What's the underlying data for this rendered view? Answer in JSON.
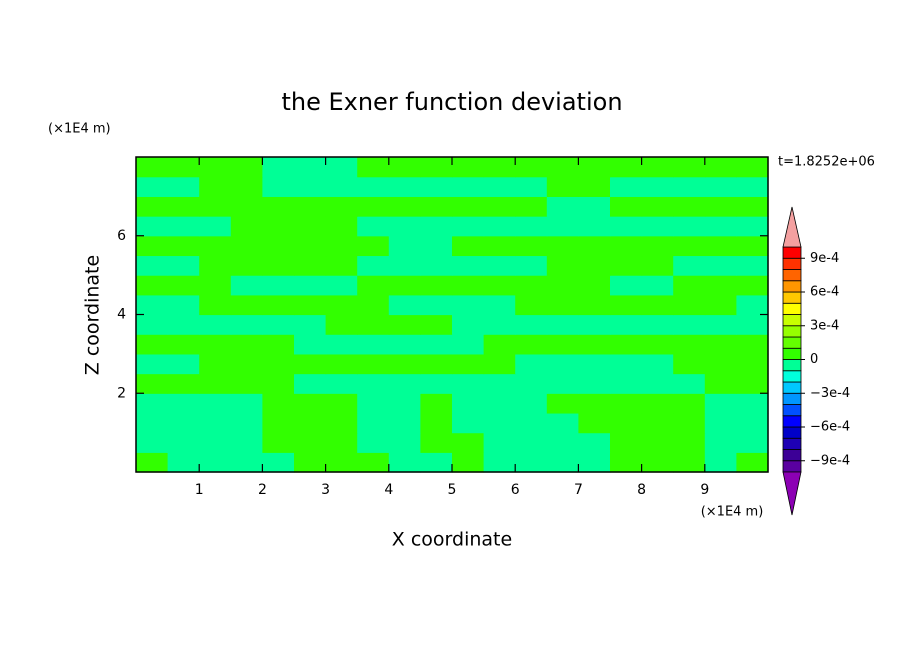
{
  "chart_data": {
    "type": "contour",
    "title": "the Exner function deviation",
    "x_label": "X coordinate",
    "y_label": "Z coordinate",
    "x_unit": "(×1E4 m)",
    "y_unit": "(×1E4 m)",
    "annotation": "t=1.8252e+06",
    "xlim": [
      0,
      10
    ],
    "ylim": [
      0,
      8
    ],
    "xticks": [
      1,
      2,
      3,
      4,
      5,
      6,
      7,
      8,
      9
    ],
    "yticks": [
      2,
      4,
      6
    ],
    "x": [
      0.25,
      0.75,
      1.25,
      1.75,
      2.25,
      2.75,
      3.25,
      3.75,
      4.25,
      4.75,
      5.25,
      5.75,
      6.25,
      6.75,
      7.25,
      7.75,
      8.25,
      8.75,
      9.25,
      9.75
    ],
    "y": [
      0.25,
      0.75,
      1.25,
      1.75,
      2.25,
      2.75,
      3.25,
      3.75,
      4.25,
      4.75,
      5.25,
      5.75,
      6.25,
      6.75,
      7.25,
      7.75
    ],
    "z": [
      [
        5e-05,
        -5e-05,
        -5e-05,
        -5e-05,
        -5e-05,
        5e-05,
        5e-05,
        5e-05,
        -5e-05,
        -5e-05,
        5e-05,
        -5e-05,
        -5e-05,
        -5e-05,
        -5e-05,
        5e-05,
        5e-05,
        5e-05,
        -5e-05,
        5e-05
      ],
      [
        -5e-05,
        -5e-05,
        -5e-05,
        -5e-05,
        5e-05,
        5e-05,
        5e-05,
        -5e-05,
        -5e-05,
        5e-05,
        5e-05,
        -5e-05,
        -5e-05,
        -5e-05,
        -5e-05,
        5e-05,
        5e-05,
        5e-05,
        -5e-05,
        -5e-05
      ],
      [
        -5e-05,
        -5e-05,
        -5e-05,
        -5e-05,
        5e-05,
        5e-05,
        5e-05,
        -5e-05,
        -5e-05,
        5e-05,
        -5e-05,
        -5e-05,
        -5e-05,
        -5e-05,
        5e-05,
        5e-05,
        5e-05,
        5e-05,
        -5e-05,
        -5e-05
      ],
      [
        -5e-05,
        -5e-05,
        -5e-05,
        -5e-05,
        5e-05,
        5e-05,
        5e-05,
        -5e-05,
        -5e-05,
        5e-05,
        -5e-05,
        -5e-05,
        -5e-05,
        5e-05,
        5e-05,
        5e-05,
        5e-05,
        5e-05,
        -5e-05,
        -5e-05
      ],
      [
        5e-05,
        5e-05,
        5e-05,
        5e-05,
        5e-05,
        -5e-05,
        -5e-05,
        -5e-05,
        -5e-05,
        -5e-05,
        -5e-05,
        -5e-05,
        -5e-05,
        -5e-05,
        -5e-05,
        -5e-05,
        -5e-05,
        -5e-05,
        5e-05,
        5e-05
      ],
      [
        -5e-05,
        -5e-05,
        5e-05,
        5e-05,
        5e-05,
        5e-05,
        5e-05,
        5e-05,
        5e-05,
        5e-05,
        5e-05,
        5e-05,
        -5e-05,
        -5e-05,
        -5e-05,
        -5e-05,
        -5e-05,
        5e-05,
        5e-05,
        5e-05
      ],
      [
        5e-05,
        5e-05,
        5e-05,
        5e-05,
        5e-05,
        -5e-05,
        -5e-05,
        -5e-05,
        -5e-05,
        -5e-05,
        -5e-05,
        5e-05,
        5e-05,
        5e-05,
        5e-05,
        5e-05,
        5e-05,
        5e-05,
        5e-05,
        5e-05
      ],
      [
        -5e-05,
        -5e-05,
        -5e-05,
        -5e-05,
        -5e-05,
        -5e-05,
        5e-05,
        5e-05,
        5e-05,
        5e-05,
        -5e-05,
        -5e-05,
        -5e-05,
        -5e-05,
        -5e-05,
        -5e-05,
        -5e-05,
        -5e-05,
        -5e-05,
        -5e-05
      ],
      [
        -5e-05,
        -5e-05,
        5e-05,
        5e-05,
        5e-05,
        5e-05,
        5e-05,
        5e-05,
        -5e-05,
        -5e-05,
        -5e-05,
        -5e-05,
        5e-05,
        5e-05,
        5e-05,
        5e-05,
        5e-05,
        5e-05,
        5e-05,
        -5e-05
      ],
      [
        5e-05,
        5e-05,
        5e-05,
        -5e-05,
        -5e-05,
        -5e-05,
        -5e-05,
        5e-05,
        5e-05,
        5e-05,
        5e-05,
        5e-05,
        5e-05,
        5e-05,
        5e-05,
        -5e-05,
        -5e-05,
        5e-05,
        5e-05,
        5e-05
      ],
      [
        -5e-05,
        -5e-05,
        5e-05,
        5e-05,
        5e-05,
        5e-05,
        5e-05,
        -5e-05,
        -5e-05,
        -5e-05,
        -5e-05,
        -5e-05,
        -5e-05,
        5e-05,
        5e-05,
        5e-05,
        5e-05,
        -5e-05,
        -5e-05,
        -5e-05
      ],
      [
        5e-05,
        5e-05,
        5e-05,
        5e-05,
        5e-05,
        5e-05,
        5e-05,
        5e-05,
        -5e-05,
        -5e-05,
        5e-05,
        5e-05,
        5e-05,
        5e-05,
        5e-05,
        5e-05,
        5e-05,
        5e-05,
        5e-05,
        5e-05
      ],
      [
        -5e-05,
        -5e-05,
        -5e-05,
        5e-05,
        5e-05,
        5e-05,
        5e-05,
        -5e-05,
        -5e-05,
        -5e-05,
        -5e-05,
        -5e-05,
        -5e-05,
        -5e-05,
        -5e-05,
        -5e-05,
        -5e-05,
        -5e-05,
        -5e-05,
        -5e-05
      ],
      [
        5e-05,
        5e-05,
        5e-05,
        5e-05,
        5e-05,
        5e-05,
        5e-05,
        5e-05,
        5e-05,
        5e-05,
        5e-05,
        5e-05,
        5e-05,
        -5e-05,
        -5e-05,
        5e-05,
        5e-05,
        5e-05,
        5e-05,
        5e-05
      ],
      [
        -5e-05,
        -5e-05,
        5e-05,
        5e-05,
        -5e-05,
        -5e-05,
        -5e-05,
        -5e-05,
        -5e-05,
        -5e-05,
        -5e-05,
        -5e-05,
        -5e-05,
        5e-05,
        5e-05,
        -5e-05,
        -5e-05,
        -5e-05,
        -5e-05,
        -5e-05
      ],
      [
        5e-05,
        5e-05,
        5e-05,
        5e-05,
        -5e-05,
        -5e-05,
        -5e-05,
        5e-05,
        5e-05,
        5e-05,
        5e-05,
        5e-05,
        5e-05,
        5e-05,
        5e-05,
        5e-05,
        5e-05,
        5e-05,
        5e-05,
        5e-05
      ]
    ],
    "colorbar": {
      "lim": [
        -0.001,
        0.001
      ],
      "ticks": [
        {
          "value": 0.0009,
          "label": "9e-4"
        },
        {
          "value": 0.0006,
          "label": "6e-4"
        },
        {
          "value": 0.0003,
          "label": "3e-4"
        },
        0,
        {
          "value": -0.0003,
          "label": "−3e-4"
        },
        {
          "value": -0.0006,
          "label": "−6e-4"
        },
        {
          "value": -0.0009,
          "label": "−9e-4"
        }
      ],
      "levels": [
        -0.001,
        -0.0009,
        -0.0008,
        -0.0007,
        -0.0006,
        -0.0005,
        -0.0004,
        -0.0003,
        -0.0002,
        -0.0001,
        0,
        0.0001,
        0.0002,
        0.0003,
        0.0004,
        0.0005,
        0.0006,
        0.0007,
        0.0008,
        0.0009,
        0.001
      ],
      "colors": [
        "#5a00a0",
        "#3c0096",
        "#1e00b4",
        "#0000c8",
        "#0000ff",
        "#0050ff",
        "#0096ff",
        "#00c8ff",
        "#00ffdc",
        "#00ff96",
        "#32ff00",
        "#64ff00",
        "#96ff00",
        "#c8ff00",
        "#ffff00",
        "#ffc800",
        "#ff9600",
        "#ff6400",
        "#ff3200",
        "#ff0000"
      ],
      "over_color": "#f4a0a0",
      "under_color": "#8c00b4"
    }
  }
}
